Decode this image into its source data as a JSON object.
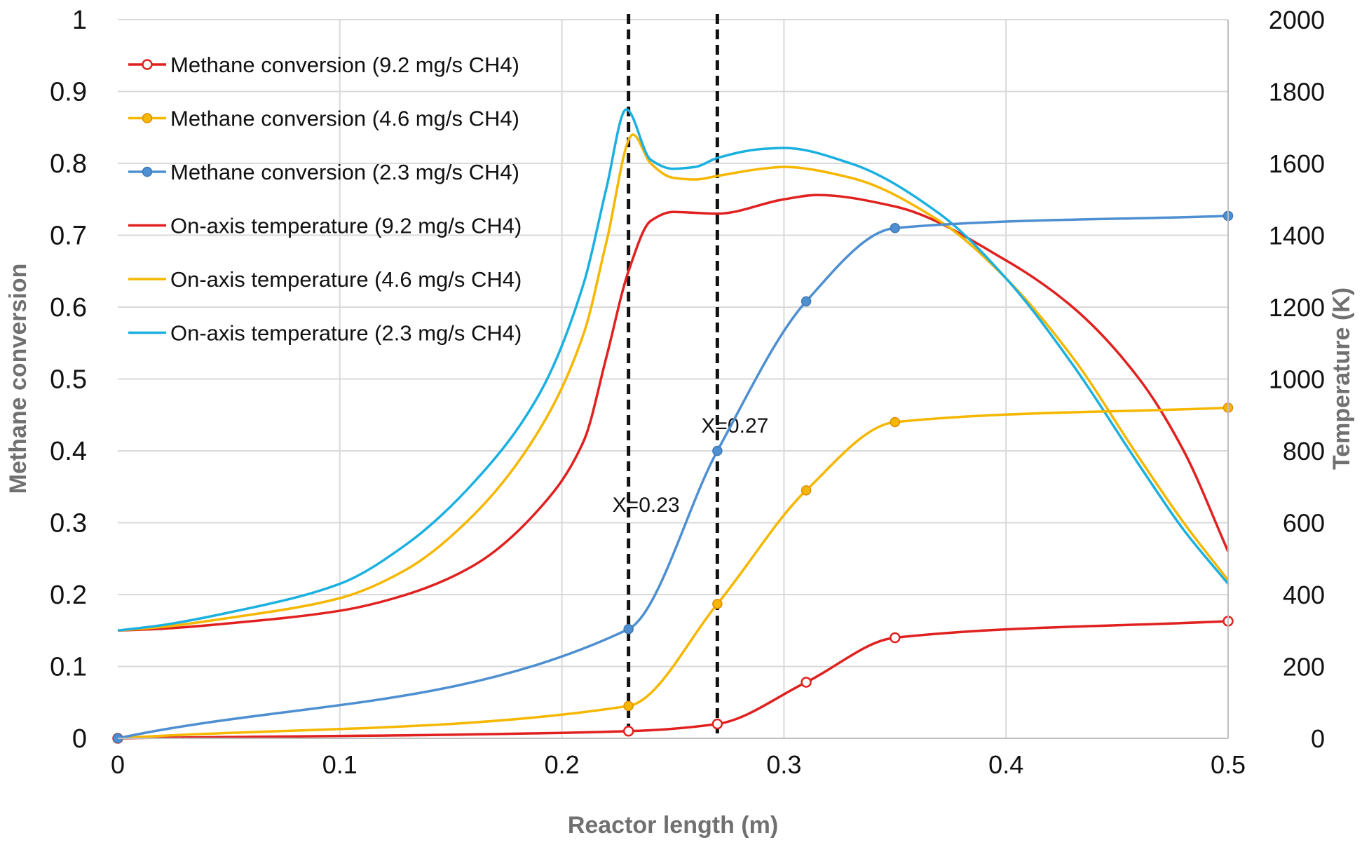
{
  "chart_data": {
    "type": "line",
    "title": "",
    "xlabel": "Reactor length (m)",
    "ylabel": "Methane conversion",
    "y2label": "Temperature (K)",
    "xlim": [
      0,
      0.5
    ],
    "ylim": [
      0,
      1
    ],
    "y2lim": [
      0,
      2000
    ],
    "x_ticks": [
      "0",
      "0.1",
      "0.2",
      "0.3",
      "0.4",
      "0.5"
    ],
    "y_ticks": [
      "0",
      "0.1",
      "0.2",
      "0.3",
      "0.4",
      "0.5",
      "0.6",
      "0.7",
      "0.8",
      "0.9",
      "1"
    ],
    "y2_ticks": [
      "0",
      "200",
      "400",
      "600",
      "800",
      "1000",
      "1200",
      "1400",
      "1600",
      "1800",
      "2000"
    ],
    "grid": true,
    "legend_position": "top-left",
    "series": [
      {
        "name": "Methane conversion (9.2 mg/s CH4)",
        "axis": "left",
        "color": "#e0211f",
        "marker": "open-circle",
        "x": [
          0,
          0.23,
          0.27,
          0.31,
          0.35,
          0.5
        ],
        "y": [
          0,
          0.01,
          0.02,
          0.078,
          0.14,
          0.163
        ]
      },
      {
        "name": "Methane conversion (4.6 mg/s CH4)",
        "axis": "left",
        "color": "#f5b700",
        "marker": "filled-circle",
        "x": [
          0,
          0.23,
          0.27,
          0.31,
          0.35,
          0.5
        ],
        "y": [
          0,
          0.045,
          0.187,
          0.345,
          0.44,
          0.46
        ]
      },
      {
        "name": "Methane conversion (2.3 mg/s CH4)",
        "axis": "left",
        "color": "#4d8fd0",
        "marker": "filled-circle",
        "x": [
          0,
          0.23,
          0.27,
          0.31,
          0.35,
          0.5
        ],
        "y": [
          0,
          0.152,
          0.4,
          0.608,
          0.71,
          0.727
        ]
      },
      {
        "name": "On-axis temperature (9.2 mg/s CH4)",
        "axis": "right",
        "color": "#e0211f",
        "marker": "none",
        "x": [
          0,
          0.02,
          0.05,
          0.1,
          0.13,
          0.16,
          0.19,
          0.21,
          0.22,
          0.23,
          0.24,
          0.25,
          0.27,
          0.3,
          0.315,
          0.35,
          0.4,
          0.43,
          0.46,
          0.48,
          0.5
        ],
        "y": [
          300,
          305,
          320,
          355,
          400,
          480,
          640,
          830,
          1060,
          1300,
          1440,
          1465,
          1460,
          1500,
          1512,
          1480,
          1330,
          1200,
          1000,
          800,
          520
        ]
      },
      {
        "name": "On-axis temperature (4.6 mg/s CH4)",
        "axis": "right",
        "color": "#f5b700",
        "marker": "none",
        "x": [
          0,
          0.02,
          0.05,
          0.1,
          0.13,
          0.16,
          0.19,
          0.21,
          0.22,
          0.232,
          0.24,
          0.25,
          0.26,
          0.27,
          0.29,
          0.3,
          0.33,
          0.37,
          0.4,
          0.43,
          0.46,
          0.48,
          0.5
        ],
        "y": [
          300,
          310,
          335,
          390,
          470,
          620,
          860,
          1130,
          1380,
          1680,
          1600,
          1560,
          1555,
          1565,
          1585,
          1590,
          1560,
          1440,
          1280,
          1060,
          780,
          600,
          440
        ]
      },
      {
        "name": "On-axis temperature (2.3 mg/s CH4)",
        "axis": "right",
        "color": "#1ab0e0",
        "marker": "none",
        "x": [
          0,
          0.02,
          0.05,
          0.1,
          0.13,
          0.16,
          0.19,
          0.21,
          0.22,
          0.229,
          0.24,
          0.25,
          0.26,
          0.27,
          0.29,
          0.3,
          0.33,
          0.37,
          0.4,
          0.43,
          0.46,
          0.48,
          0.5
        ],
        "y": [
          300,
          315,
          350,
          430,
          540,
          710,
          960,
          1270,
          1530,
          1750,
          1610,
          1585,
          1590,
          1615,
          1640,
          1643,
          1600,
          1460,
          1280,
          1040,
          760,
          580,
          430
        ]
      }
    ],
    "vertical_markers": [
      {
        "x": 0.23,
        "label": "X=0.23",
        "label_y": 0.325
      },
      {
        "x": 0.27,
        "label": "X=0.27",
        "label_y": 0.435
      }
    ]
  }
}
